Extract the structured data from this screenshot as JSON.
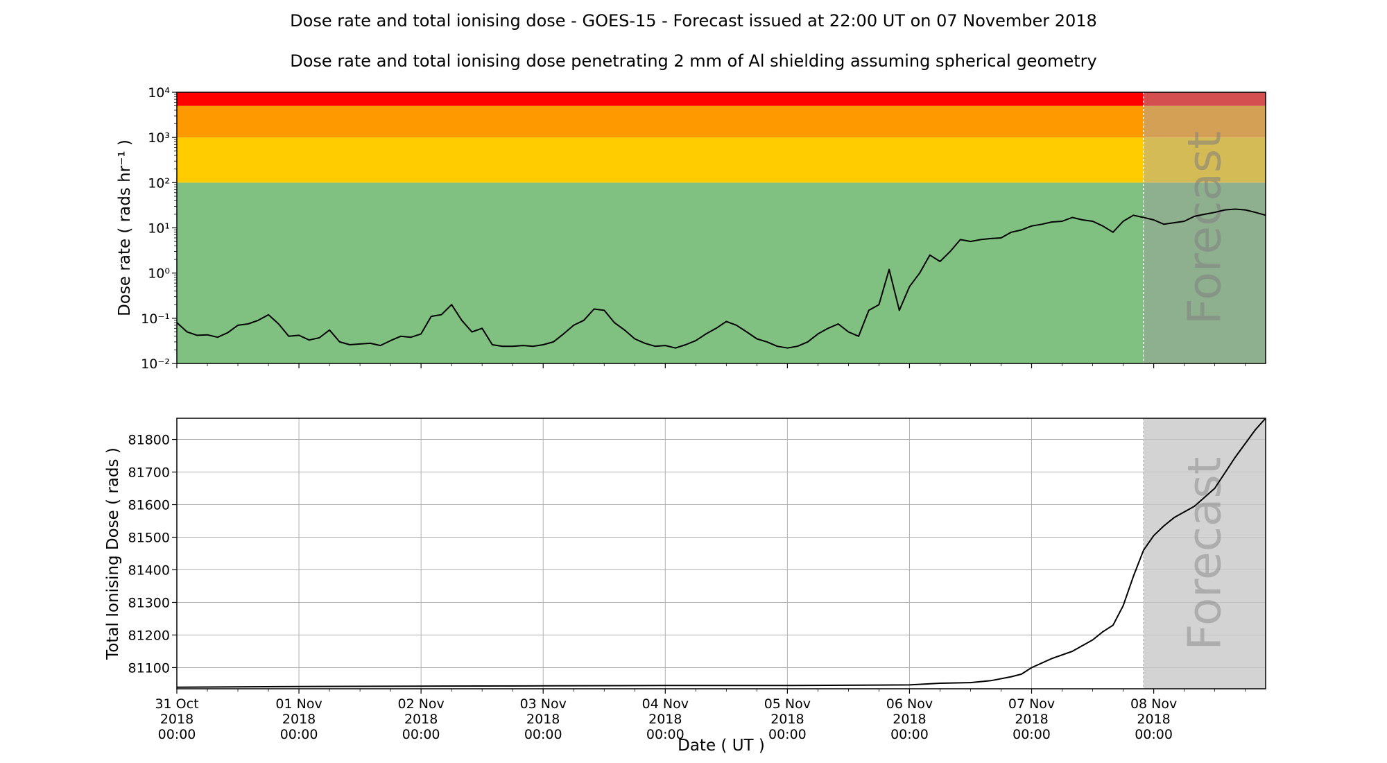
{
  "figure": {
    "title": "Dose rate and total ionising dose - GOES-15 - Forecast issued at 22:00 UT on 07 November 2018",
    "subtitle": "Dose rate and total ionising dose penetrating 2 mm of Al shielding assuming spherical geometry"
  },
  "chart_data": [
    {
      "type": "line",
      "title": "Dose rate and total ionising dose penetrating 2 mm of Al shielding assuming spherical geometry",
      "ylabel": "Dose rate ( rads hr⁻¹ )",
      "yscale": "log",
      "ylim": [
        0.01,
        10000
      ],
      "ytick_labels": [
        "10⁻²",
        "10⁻¹",
        "10⁰",
        "10¹",
        "10²",
        "10³",
        "10⁴"
      ],
      "ytick_values": [
        0.01,
        0.1,
        1,
        10,
        100,
        1000,
        10000
      ],
      "xlim": [
        "2018-10-31 00:00",
        "2018-11-08 22:00"
      ],
      "grid": false,
      "forecast_start": "2018-11-07 22:00",
      "forecast_label": "Forecast",
      "threshold_bands": [
        {
          "from": 0.01,
          "to": 100,
          "color": "#80c080"
        },
        {
          "from": 100,
          "to": 1000,
          "color": "#ffcc00"
        },
        {
          "from": 1000,
          "to": 5000,
          "color": "#ff9900"
        },
        {
          "from": 5000,
          "to": 10000,
          "color": "#ff0000"
        }
      ],
      "forecast_band_colors": [
        "#8fb08f",
        "#d4bb55",
        "#d4a055",
        "#d45050"
      ],
      "series": [
        {
          "color": "#000000",
          "points": [
            [
              "2018-10-31 00:00",
              0.08
            ],
            [
              "2018-10-31 02:00",
              0.05
            ],
            [
              "2018-10-31 04:00",
              0.042
            ],
            [
              "2018-10-31 06:00",
              0.043
            ],
            [
              "2018-10-31 08:00",
              0.038
            ],
            [
              "2018-10-31 10:00",
              0.048
            ],
            [
              "2018-10-31 12:00",
              0.07
            ],
            [
              "2018-10-31 14:00",
              0.075
            ],
            [
              "2018-10-31 16:00",
              0.09
            ],
            [
              "2018-10-31 18:00",
              0.12
            ],
            [
              "2018-10-31 20:00",
              0.075
            ],
            [
              "2018-10-31 22:00",
              0.04
            ],
            [
              "2018-11-01 00:00",
              0.042
            ],
            [
              "2018-11-01 02:00",
              0.033
            ],
            [
              "2018-11-01 04:00",
              0.037
            ],
            [
              "2018-11-01 06:00",
              0.055
            ],
            [
              "2018-11-01 08:00",
              0.03
            ],
            [
              "2018-11-01 10:00",
              0.026
            ],
            [
              "2018-11-01 12:00",
              0.027
            ],
            [
              "2018-11-01 14:00",
              0.028
            ],
            [
              "2018-11-01 16:00",
              0.025
            ],
            [
              "2018-11-01 18:00",
              0.032
            ],
            [
              "2018-11-01 20:00",
              0.04
            ],
            [
              "2018-11-01 22:00",
              0.038
            ],
            [
              "2018-11-02 00:00",
              0.045
            ],
            [
              "2018-11-02 02:00",
              0.11
            ],
            [
              "2018-11-02 04:00",
              0.12
            ],
            [
              "2018-11-02 06:00",
              0.2
            ],
            [
              "2018-11-02 08:00",
              0.09
            ],
            [
              "2018-11-02 10:00",
              0.05
            ],
            [
              "2018-11-02 12:00",
              0.06
            ],
            [
              "2018-11-02 14:00",
              0.026
            ],
            [
              "2018-11-02 16:00",
              0.024
            ],
            [
              "2018-11-02 18:00",
              0.024
            ],
            [
              "2018-11-02 20:00",
              0.025
            ],
            [
              "2018-11-02 22:00",
              0.024
            ],
            [
              "2018-11-03 00:00",
              0.026
            ],
            [
              "2018-11-03 02:00",
              0.03
            ],
            [
              "2018-11-03 04:00",
              0.045
            ],
            [
              "2018-11-03 06:00",
              0.07
            ],
            [
              "2018-11-03 08:00",
              0.09
            ],
            [
              "2018-11-03 10:00",
              0.16
            ],
            [
              "2018-11-03 12:00",
              0.15
            ],
            [
              "2018-11-03 14:00",
              0.08
            ],
            [
              "2018-11-03 16:00",
              0.055
            ],
            [
              "2018-11-03 18:00",
              0.035
            ],
            [
              "2018-11-03 20:00",
              0.028
            ],
            [
              "2018-11-03 22:00",
              0.024
            ],
            [
              "2018-11-04 00:00",
              0.025
            ],
            [
              "2018-11-04 02:00",
              0.022
            ],
            [
              "2018-11-04 04:00",
              0.026
            ],
            [
              "2018-11-04 06:00",
              0.032
            ],
            [
              "2018-11-04 08:00",
              0.045
            ],
            [
              "2018-11-04 10:00",
              0.06
            ],
            [
              "2018-11-04 12:00",
              0.085
            ],
            [
              "2018-11-04 14:00",
              0.07
            ],
            [
              "2018-11-04 16:00",
              0.05
            ],
            [
              "2018-11-04 18:00",
              0.035
            ],
            [
              "2018-11-04 20:00",
              0.03
            ],
            [
              "2018-11-04 22:00",
              0.024
            ],
            [
              "2018-11-05 00:00",
              0.022
            ],
            [
              "2018-11-05 02:00",
              0.024
            ],
            [
              "2018-11-05 04:00",
              0.03
            ],
            [
              "2018-11-05 06:00",
              0.045
            ],
            [
              "2018-11-05 08:00",
              0.06
            ],
            [
              "2018-11-05 10:00",
              0.075
            ],
            [
              "2018-11-05 12:00",
              0.05
            ],
            [
              "2018-11-05 14:00",
              0.04
            ],
            [
              "2018-11-05 16:00",
              0.15
            ],
            [
              "2018-11-05 18:00",
              0.2
            ],
            [
              "2018-11-05 20:00",
              1.2
            ],
            [
              "2018-11-05 22:00",
              0.15
            ],
            [
              "2018-11-06 00:00",
              0.5
            ],
            [
              "2018-11-06 02:00",
              1.0
            ],
            [
              "2018-11-06 04:00",
              2.5
            ],
            [
              "2018-11-06 06:00",
              1.8
            ],
            [
              "2018-11-06 08:00",
              3.0
            ],
            [
              "2018-11-06 10:00",
              5.5
            ],
            [
              "2018-11-06 12:00",
              5.0
            ],
            [
              "2018-11-06 14:00",
              5.5
            ],
            [
              "2018-11-06 16:00",
              5.8
            ],
            [
              "2018-11-06 18:00",
              6.0
            ],
            [
              "2018-11-06 20:00",
              8.0
            ],
            [
              "2018-11-06 22:00",
              9.0
            ],
            [
              "2018-11-07 00:00",
              11.0
            ],
            [
              "2018-11-07 02:00",
              12.0
            ],
            [
              "2018-11-07 04:00",
              13.5
            ],
            [
              "2018-11-07 06:00",
              14.0
            ],
            [
              "2018-11-07 08:00",
              17.0
            ],
            [
              "2018-11-07 10:00",
              15.0
            ],
            [
              "2018-11-07 12:00",
              14.0
            ],
            [
              "2018-11-07 14:00",
              11.0
            ],
            [
              "2018-11-07 16:00",
              8.0
            ],
            [
              "2018-11-07 18:00",
              14.0
            ],
            [
              "2018-11-07 20:00",
              19.0
            ],
            [
              "2018-11-07 22:00",
              17.0
            ],
            [
              "2018-11-08 00:00",
              15.0
            ],
            [
              "2018-11-08 02:00",
              12.0
            ],
            [
              "2018-11-08 04:00",
              13.0
            ],
            [
              "2018-11-08 06:00",
              14.0
            ],
            [
              "2018-11-08 08:00",
              18.0
            ],
            [
              "2018-11-08 10:00",
              20.0
            ],
            [
              "2018-11-08 12:00",
              22.0
            ],
            [
              "2018-11-08 14:00",
              25.0
            ],
            [
              "2018-11-08 16:00",
              26.0
            ],
            [
              "2018-11-08 18:00",
              25.0
            ],
            [
              "2018-11-08 20:00",
              22.0
            ],
            [
              "2018-11-08 22:00",
              19.0
            ]
          ]
        }
      ]
    },
    {
      "type": "line",
      "xlabel": "Date ( UT )",
      "ylabel": "Total Ionising Dose ( rads )",
      "ylim": [
        81035,
        81865
      ],
      "yticks": [
        81100,
        81200,
        81300,
        81400,
        81500,
        81600,
        81700,
        81800
      ],
      "xlim": [
        "2018-10-31 00:00",
        "2018-11-08 22:00"
      ],
      "grid": true,
      "forecast_start": "2018-11-07 22:00",
      "forecast_label": "Forecast",
      "forecast_shade_color": "#d3d3d3",
      "xticks": [
        {
          "at": "2018-10-31 00:00",
          "label": [
            "31 Oct",
            "2018",
            "00:00"
          ]
        },
        {
          "at": "2018-11-01 00:00",
          "label": [
            "01 Nov",
            "2018",
            "00:00"
          ]
        },
        {
          "at": "2018-11-02 00:00",
          "label": [
            "02 Nov",
            "2018",
            "00:00"
          ]
        },
        {
          "at": "2018-11-03 00:00",
          "label": [
            "03 Nov",
            "2018",
            "00:00"
          ]
        },
        {
          "at": "2018-11-04 00:00",
          "label": [
            "04 Nov",
            "2018",
            "00:00"
          ]
        },
        {
          "at": "2018-11-05 00:00",
          "label": [
            "05 Nov",
            "2018",
            "00:00"
          ]
        },
        {
          "at": "2018-11-06 00:00",
          "label": [
            "06 Nov",
            "2018",
            "00:00"
          ]
        },
        {
          "at": "2018-11-07 00:00",
          "label": [
            "07 Nov",
            "2018",
            "00:00"
          ]
        },
        {
          "at": "2018-11-08 00:00",
          "label": [
            "08 Nov",
            "2018",
            "00:00"
          ]
        }
      ],
      "series": [
        {
          "color": "#000000",
          "points": [
            [
              "2018-10-31 00:00",
              81040
            ],
            [
              "2018-11-01 00:00",
              81042
            ],
            [
              "2018-11-02 00:00",
              81043
            ],
            [
              "2018-11-03 00:00",
              81044
            ],
            [
              "2018-11-04 00:00",
              81045
            ],
            [
              "2018-11-05 00:00",
              81045
            ],
            [
              "2018-11-06 00:00",
              81047
            ],
            [
              "2018-11-06 06:00",
              81052
            ],
            [
              "2018-11-06 12:00",
              81054
            ],
            [
              "2018-11-06 16:00",
              81060
            ],
            [
              "2018-11-06 20:00",
              81072
            ],
            [
              "2018-11-06 22:00",
              81080
            ],
            [
              "2018-11-07 00:00",
              81100
            ],
            [
              "2018-11-07 04:00",
              81128
            ],
            [
              "2018-11-07 08:00",
              81150
            ],
            [
              "2018-11-07 12:00",
              81185
            ],
            [
              "2018-11-07 14:00",
              81210
            ],
            [
              "2018-11-07 16:00",
              81230
            ],
            [
              "2018-11-07 18:00",
              81290
            ],
            [
              "2018-11-07 20:00",
              81380
            ],
            [
              "2018-11-07 22:00",
              81460
            ],
            [
              "2018-11-08 00:00",
              81505
            ],
            [
              "2018-11-08 02:00",
              81535
            ],
            [
              "2018-11-08 04:00",
              81560
            ],
            [
              "2018-11-08 08:00",
              81595
            ],
            [
              "2018-11-08 12:00",
              81650
            ],
            [
              "2018-11-08 16:00",
              81745
            ],
            [
              "2018-11-08 20:00",
              81830
            ],
            [
              "2018-11-08 22:00",
              81865
            ]
          ]
        }
      ]
    }
  ]
}
